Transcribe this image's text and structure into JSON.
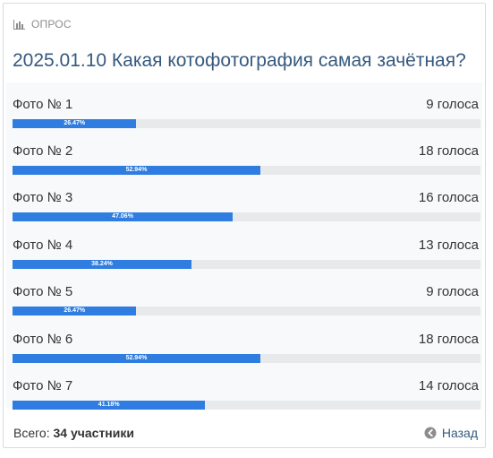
{
  "poll": {
    "header_label": "ОПРОС",
    "title": "2025.01.10 Какая котофотография самая зачётная?",
    "options": [
      {
        "name": "Фото № 1",
        "votes": "9 голоса",
        "percent": "26.47%",
        "fraction": 0.2647
      },
      {
        "name": "Фото № 2",
        "votes": "18 голоса",
        "percent": "52.94%",
        "fraction": 0.5294
      },
      {
        "name": "Фото № 3",
        "votes": "16 голоса",
        "percent": "47.06%",
        "fraction": 0.4706
      },
      {
        "name": "Фото № 4",
        "votes": "13 голоса",
        "percent": "38.24%",
        "fraction": 0.3824
      },
      {
        "name": "Фото № 5",
        "votes": "9 голоса",
        "percent": "26.47%",
        "fraction": 0.2647
      },
      {
        "name": "Фото № 6",
        "votes": "18 голоса",
        "percent": "52.94%",
        "fraction": 0.5294
      },
      {
        "name": "Фото № 7",
        "votes": "14 голоса",
        "percent": "41.18%",
        "fraction": 0.4118
      }
    ],
    "footer": {
      "total_label": "Всего:",
      "total_value": "34 участники",
      "back_label": "Назад"
    }
  },
  "colors": {
    "accent": "#2f7de1",
    "title": "#35597f",
    "track": "#e8e9eb"
  },
  "icons": {
    "header": "bar-chart-icon",
    "back": "circle-arrow-left-icon"
  }
}
